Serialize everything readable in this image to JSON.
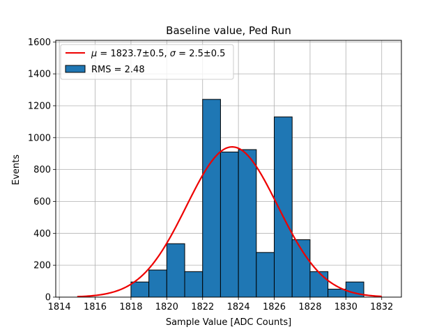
{
  "chart_data": {
    "type": "bar",
    "title": "Baseline value, Ped Run",
    "xlabel": "Sample Value [ADC Counts]",
    "ylabel": "Events",
    "xlim": [
      1813.8,
      1833.1
    ],
    "ylim": [
      0,
      1610
    ],
    "grid": true,
    "xticks": [
      1814,
      1816,
      1818,
      1820,
      1822,
      1824,
      1826,
      1828,
      1830,
      1832
    ],
    "yticks": [
      0,
      200,
      400,
      600,
      800,
      1000,
      1200,
      1400,
      1600
    ],
    "histogram": {
      "name": "RMS = 2.48",
      "color": "#1f77b4",
      "edge_color": "#000000",
      "bin_edges": [
        1815.0,
        1816.0,
        1817.0,
        1818.0,
        1819.0,
        1820.0,
        1821.0,
        1822.0,
        1823.0,
        1824.0,
        1825.0,
        1826.0,
        1827.0,
        1828.0,
        1829.0,
        1830.0,
        1831.0,
        1832.0
      ],
      "counts": [
        0,
        0,
        0,
        95,
        170,
        335,
        160,
        1240,
        910,
        925,
        280,
        1130,
        360,
        160,
        50,
        95,
        0
      ]
    },
    "fit": {
      "name": "μ = 1823.7±0.5, σ = 2.5±0.5",
      "name_parts": {
        "mu_symbol": "μ",
        "mu_value": "= 1823.7±0.5,",
        "sigma_symbol": "σ",
        "sigma_value": "= 2.5±0.5"
      },
      "type": "gaussian",
      "mu": 1823.65,
      "sigma": 2.55,
      "amplitude": 942,
      "x_range": [
        1815.0,
        1832.0
      ],
      "color": "#ee0000"
    },
    "legend_position": "upper-left"
  }
}
